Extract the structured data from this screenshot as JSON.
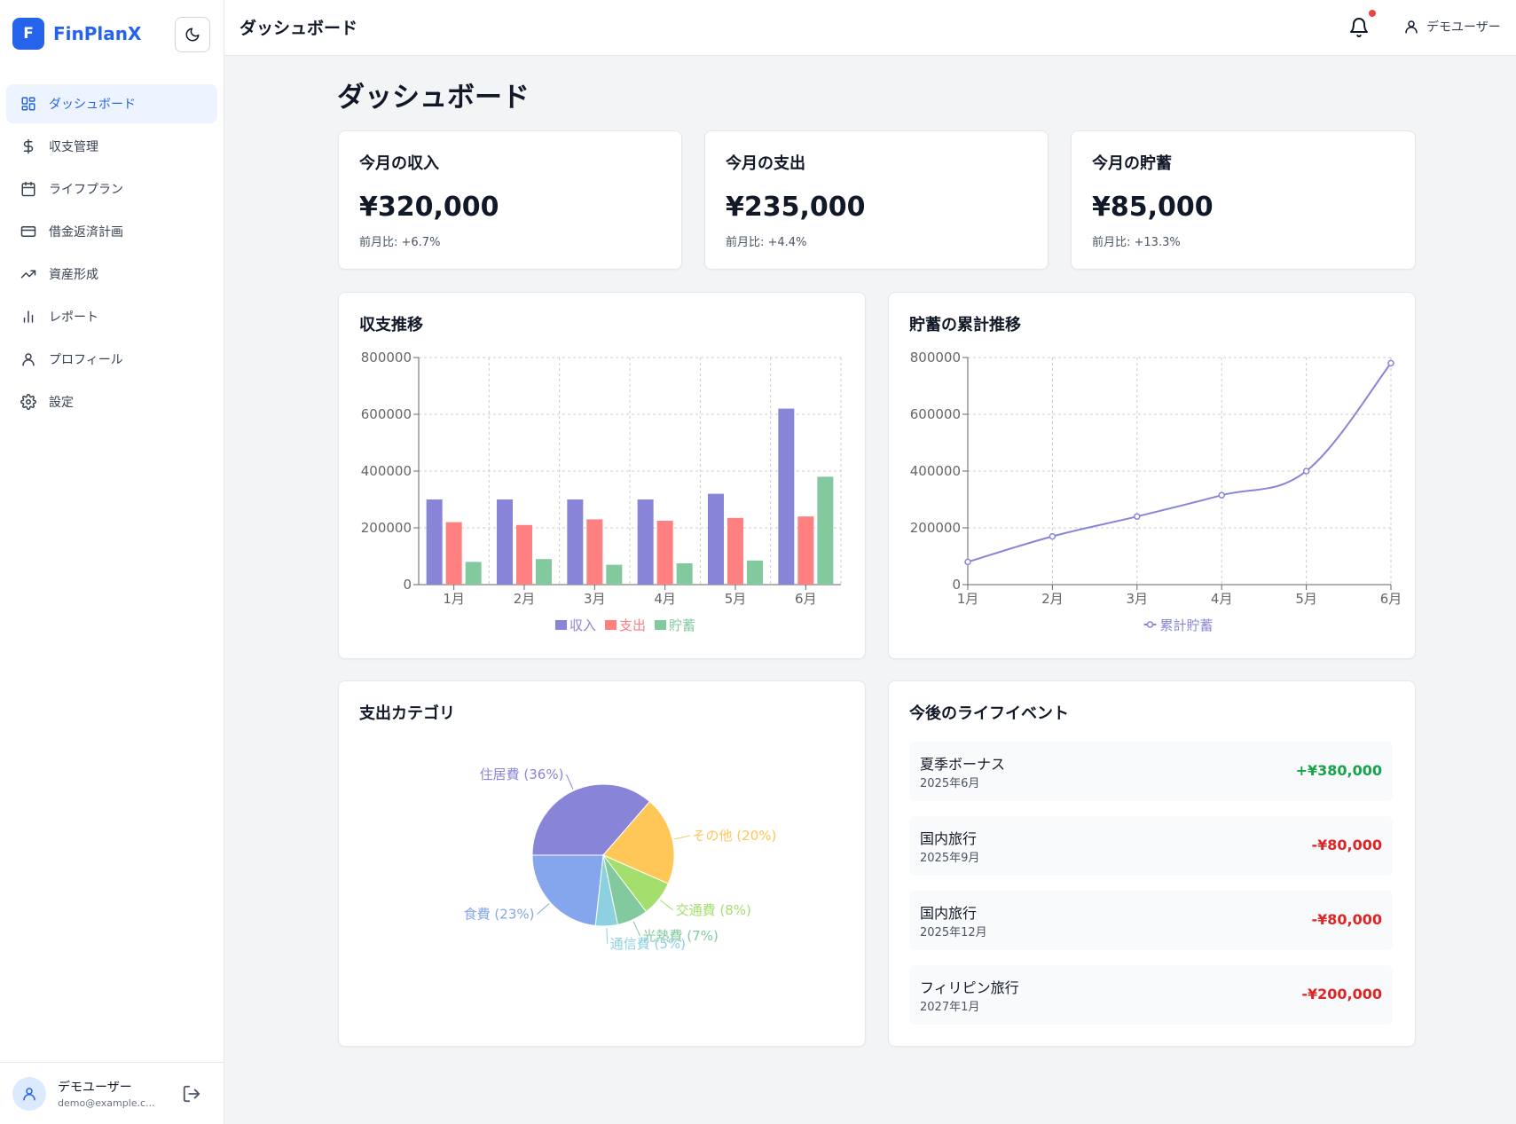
{
  "app": {
    "logo_letter": "F",
    "name": "FinPlanX"
  },
  "sidebar": {
    "items": [
      {
        "label": "ダッシュボード",
        "icon": "dashboard-icon",
        "active": true
      },
      {
        "label": "収支管理",
        "icon": "dollar-icon"
      },
      {
        "label": "ライフプラン",
        "icon": "calendar-icon"
      },
      {
        "label": "借金返済計画",
        "icon": "credit-card-icon"
      },
      {
        "label": "資産形成",
        "icon": "trending-up-icon"
      },
      {
        "label": "レポート",
        "icon": "bar-chart-icon"
      },
      {
        "label": "プロフィール",
        "icon": "user-icon"
      },
      {
        "label": "設定",
        "icon": "gear-icon"
      }
    ],
    "user": {
      "name": "デモユーザー",
      "email": "demo@example.c..."
    }
  },
  "header": {
    "title": "ダッシュボード",
    "user_name": "デモユーザー"
  },
  "main": {
    "title": "ダッシュボード",
    "stats": [
      {
        "title": "今月の収入",
        "value": "¥320,000",
        "change": "前月比: +6.7%"
      },
      {
        "title": "今月の支出",
        "value": "¥235,000",
        "change": "前月比: +4.4%"
      },
      {
        "title": "今月の貯蓄",
        "value": "¥85,000",
        "change": "前月比: +13.3%"
      }
    ],
    "income_chart_title": "収支推移",
    "savings_chart_title": "貯蓄の累計推移",
    "pie_chart_title": "支出カテゴリ",
    "events_title": "今後のライフイベント",
    "events": [
      {
        "name": "夏季ボーナス",
        "date": "2025年6月",
        "amount": "+¥380,000",
        "color": "#16a34a"
      },
      {
        "name": "国内旅行",
        "date": "2025年9月",
        "amount": "-¥80,000",
        "color": "#dc2626"
      },
      {
        "name": "国内旅行",
        "date": "2025年12月",
        "amount": "-¥80,000",
        "color": "#dc2626"
      },
      {
        "name": "フィリピン旅行",
        "date": "2027年1月",
        "amount": "-¥200,000",
        "color": "#dc2626"
      }
    ]
  },
  "chart_data": [
    {
      "type": "bar",
      "categories": [
        "1月",
        "2月",
        "3月",
        "4月",
        "5月",
        "6月"
      ],
      "series": [
        {
          "name": "収入",
          "color": "#8884d8",
          "values": [
            300000,
            300000,
            300000,
            300000,
            320000,
            620000
          ]
        },
        {
          "name": "支出",
          "color": "#ff8080",
          "values": [
            220000,
            210000,
            230000,
            225000,
            235000,
            240000
          ]
        },
        {
          "name": "貯蓄",
          "color": "#82ca9d",
          "values": [
            80000,
            90000,
            70000,
            75000,
            85000,
            380000
          ]
        }
      ],
      "ylim": [
        0,
        800000
      ],
      "yticks": [
        "0",
        "200000",
        "400000",
        "600000",
        "800000"
      ],
      "grid": true,
      "legend": "bottom"
    },
    {
      "type": "line",
      "x": [
        "1月",
        "2月",
        "3月",
        "4月",
        "5月",
        "6月"
      ],
      "series": [
        {
          "name": "累計貯蓄",
          "color": "#8884d8",
          "values": [
            80000,
            170000,
            240000,
            315000,
            400000,
            780000
          ]
        }
      ],
      "ylim": [
        0,
        800000
      ],
      "yticks": [
        "0",
        "200000",
        "400000",
        "600000",
        "800000"
      ],
      "grid": true,
      "legend": "bottom"
    },
    {
      "type": "pie",
      "slices": [
        {
          "label": "住居費 (36%)",
          "value": 36,
          "color": "#8884d8"
        },
        {
          "label": "その他 (20%)",
          "value": 20,
          "color": "#ffc658"
        },
        {
          "label": "交通費 (8%)",
          "value": 8,
          "color": "#a4de6c"
        },
        {
          "label": "光熱費 (7%)",
          "value": 7,
          "color": "#82ca9d"
        },
        {
          "label": "通信費 (5%)",
          "value": 5,
          "color": "#8dd1e1"
        },
        {
          "label": "食費 (23%)",
          "value": 23,
          "color": "#83a6ed"
        }
      ]
    }
  ]
}
